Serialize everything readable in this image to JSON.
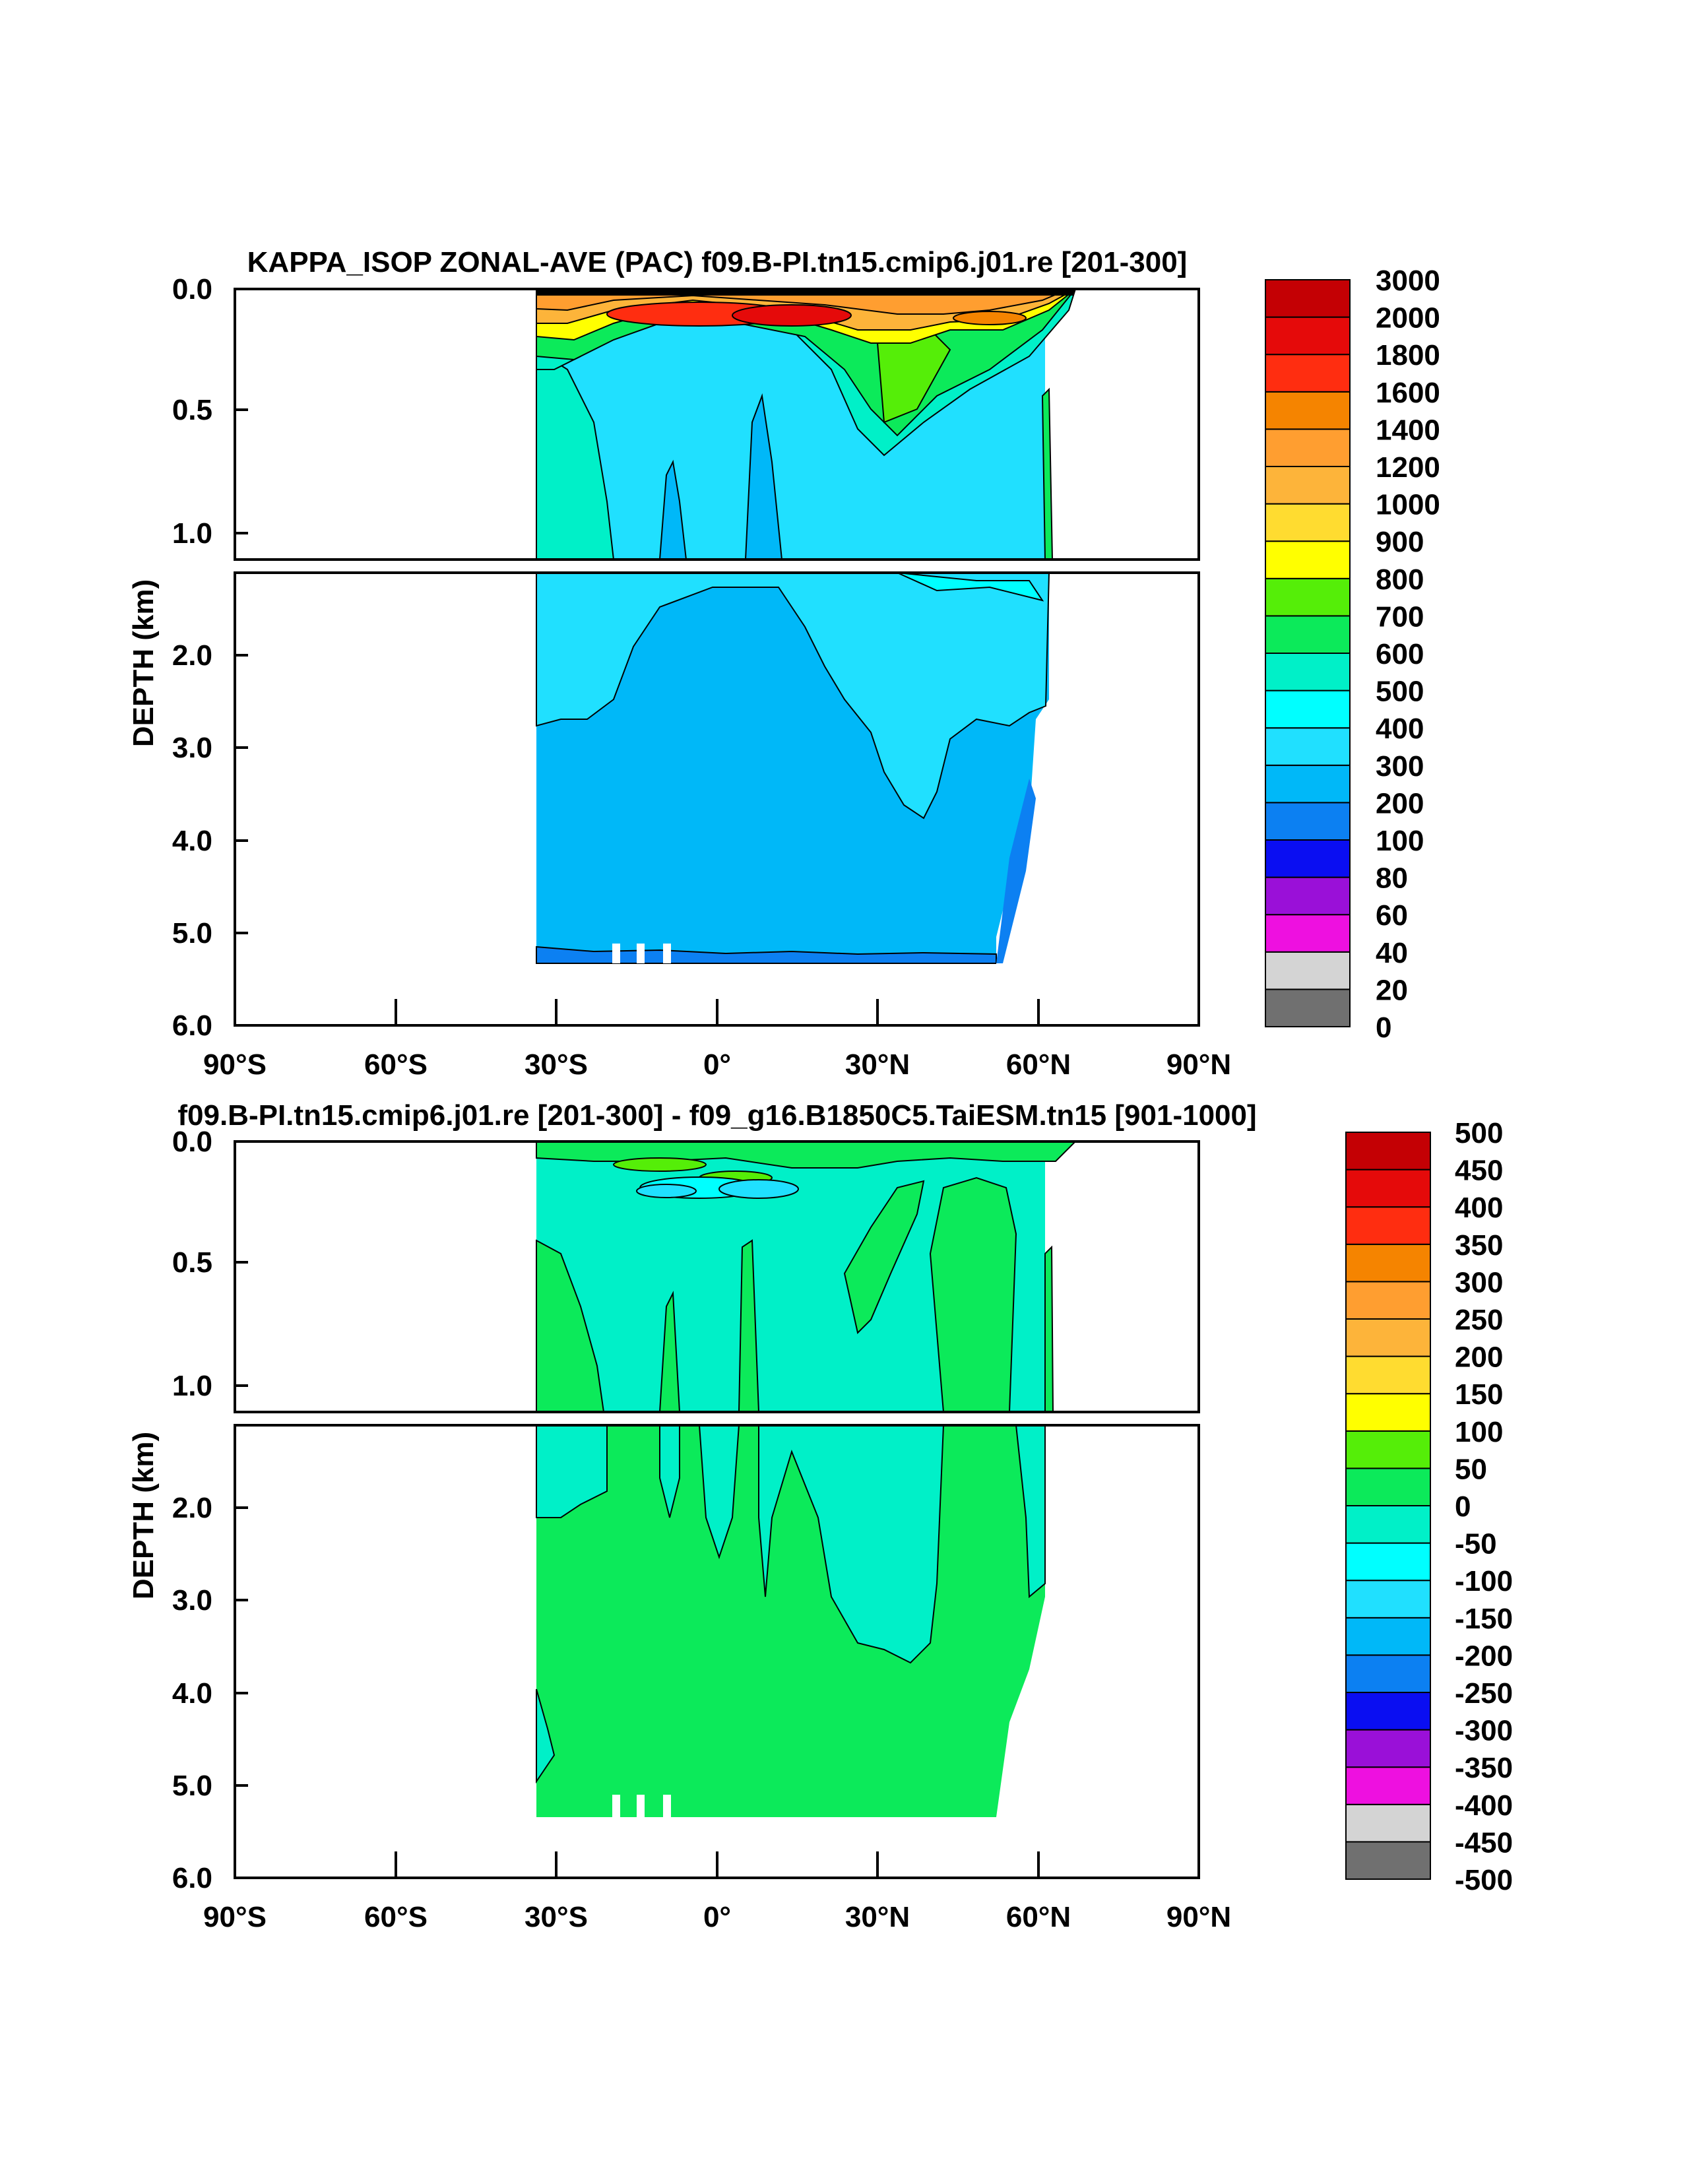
{
  "chart_data": [
    {
      "type": "contour",
      "title": "KAPPA_ISOP ZONAL-AVE (PAC) f09.B-PI.tn15.cmip6.j01.re [201-300]",
      "ylabel": "DEPTH (km)",
      "xlabel": "",
      "x_ticks": [
        "90°S",
        "60°S",
        "30°S",
        "0°",
        "30°N",
        "60°N",
        "90°N"
      ],
      "y_ticks_upper": [
        "0.0",
        "0.5",
        "1.0"
      ],
      "y_ticks_lower": [
        "2.0",
        "3.0",
        "4.0",
        "5.0",
        "6.0"
      ],
      "xlim": [
        -90,
        90
      ],
      "ylim_upper": [
        0,
        1.1
      ],
      "ylim_lower": [
        1.1,
        6.0
      ],
      "colorbar_labels": [
        "0",
        "20",
        "40",
        "60",
        "80",
        "100",
        "200",
        "300",
        "400",
        "500",
        "600",
        "700",
        "800",
        "900",
        "1000",
        "1200",
        "1400",
        "1600",
        "1800",
        "2000",
        "3000"
      ],
      "colorbar_colors": [
        "#707070",
        "#d4d4d4",
        "#ee10e0",
        "#9a10d8",
        "#0a0ef2",
        "#0c80f2",
        "#00b8f8",
        "#20e0ff",
        "#00ffff",
        "#00f0c8",
        "#0cea5a",
        "#55ee08",
        "#ffff00",
        "#ffdc30",
        "#fdb43a",
        "#ff9e30",
        "#f58400",
        "#ff2d10",
        "#e50a0a",
        "#c40004"
      ]
    },
    {
      "type": "contour",
      "title": "f09.B-PI.tn15.cmip6.j01.re [201-300] - f09_g16.B1850C5.TaiESM.tn15 [901-1000]",
      "ylabel": "DEPTH (km)",
      "xlabel": "",
      "x_ticks": [
        "90°S",
        "60°S",
        "30°S",
        "0°",
        "30°N",
        "60°N",
        "90°N"
      ],
      "y_ticks_upper": [
        "0.0",
        "0.5",
        "1.0"
      ],
      "y_ticks_lower": [
        "2.0",
        "3.0",
        "4.0",
        "5.0",
        "6.0"
      ],
      "xlim": [
        -90,
        90
      ],
      "ylim_upper": [
        0,
        1.1
      ],
      "ylim_lower": [
        1.1,
        6.0
      ],
      "colorbar_labels": [
        "-500",
        "-450",
        "-400",
        "-350",
        "-300",
        "-250",
        "-200",
        "-150",
        "-100",
        "-50",
        "0",
        "50",
        "100",
        "150",
        "200",
        "250",
        "300",
        "350",
        "400",
        "450",
        "500"
      ],
      "colorbar_colors": [
        "#707070",
        "#d4d4d4",
        "#ee10e0",
        "#9a10d8",
        "#0a0ef2",
        "#0c80f2",
        "#00b8f8",
        "#20e0ff",
        "#00ffff",
        "#00f0c8",
        "#0cea5a",
        "#55ee08",
        "#ffff00",
        "#ffdc30",
        "#fdb43a",
        "#ff9e30",
        "#f58400",
        "#ff2d10",
        "#e50a0a",
        "#c40004"
      ]
    }
  ]
}
